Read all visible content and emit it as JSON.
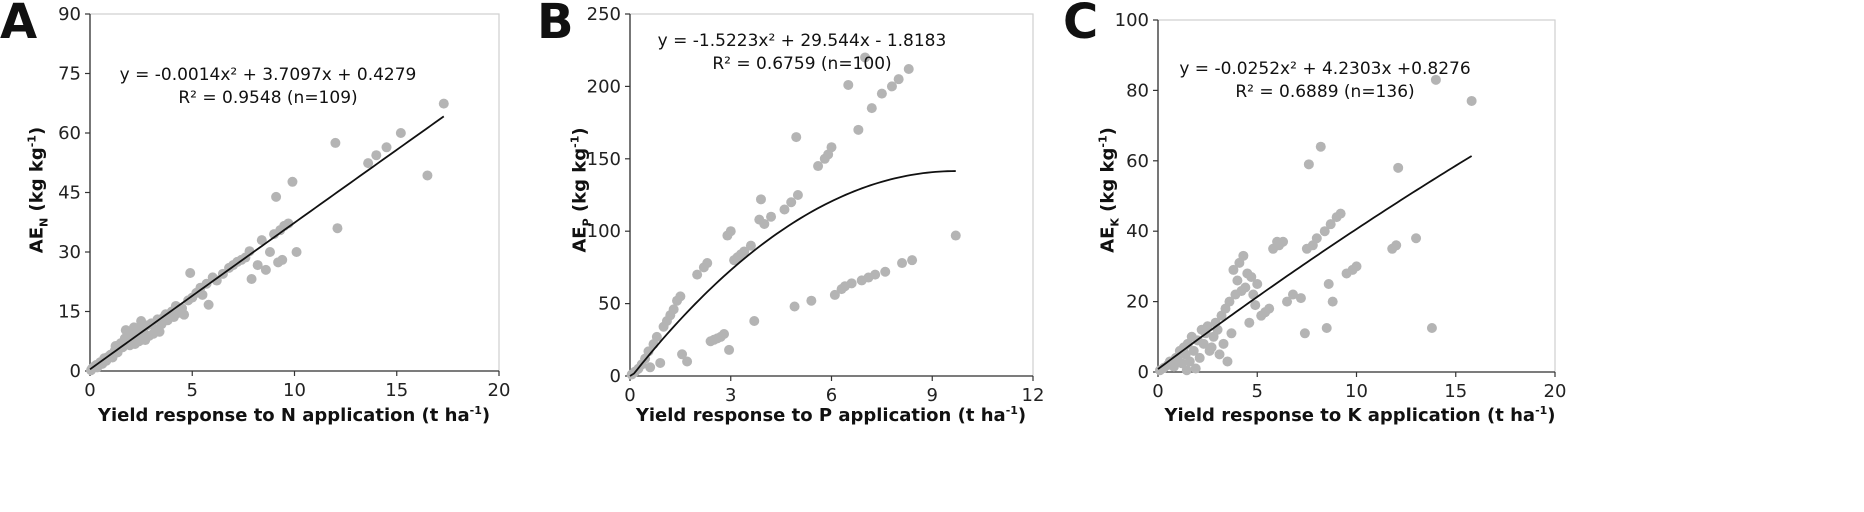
{
  "chart_data": [
    {
      "type": "scatter",
      "panel_label": "A",
      "xlabel_main": "Yield response to N application (t ha",
      "xlabel_sup": "-1",
      "xlabel_end": ")",
      "ylabel_main": "AE",
      "ylabel_sub": "N",
      "ylabel_unit": " (kg kg",
      "ylabel_sup": "-1",
      "ylabel_end": ")",
      "equation": "y = -0.0014x² + 3.7097x + 0.4279",
      "r2": "R² = 0.9548 (n=109)",
      "xlim": [
        0,
        20
      ],
      "ylim": [
        0,
        90
      ],
      "xticks": [
        0,
        5,
        10,
        15,
        20
      ],
      "yticks": [
        0,
        15,
        30,
        45,
        60,
        75,
        90
      ],
      "grid": false,
      "fit": {
        "a": -0.0014,
        "b": 3.7097,
        "c": 0.4279,
        "x_range": [
          0,
          17.3
        ]
      },
      "points": [
        [
          0.05,
          0.2
        ],
        [
          0.1,
          0.6
        ],
        [
          0.2,
          1.1
        ],
        [
          0.3,
          1.5
        ],
        [
          0.35,
          0.9
        ],
        [
          0.5,
          2.2
        ],
        [
          0.6,
          1.8
        ],
        [
          0.7,
          3.2
        ],
        [
          0.8,
          2.6
        ],
        [
          0.9,
          3.6
        ],
        [
          1.0,
          4.1
        ],
        [
          1.1,
          3.4
        ],
        [
          1.2,
          5.0
        ],
        [
          1.25,
          6.3
        ],
        [
          1.35,
          4.7
        ],
        [
          1.4,
          5.8
        ],
        [
          1.5,
          7.0
        ],
        [
          1.6,
          6.0
        ],
        [
          1.7,
          8.2
        ],
        [
          1.75,
          10.3
        ],
        [
          1.8,
          7.1
        ],
        [
          1.9,
          9.3
        ],
        [
          1.95,
          6.5
        ],
        [
          2.0,
          10.0
        ],
        [
          2.05,
          7.8
        ],
        [
          2.1,
          8.9
        ],
        [
          2.15,
          11.0
        ],
        [
          2.2,
          6.8
        ],
        [
          2.3,
          9.6
        ],
        [
          2.35,
          10.8
        ],
        [
          2.4,
          7.5
        ],
        [
          2.5,
          12.6
        ],
        [
          2.55,
          8.4
        ],
        [
          2.6,
          10.2
        ],
        [
          2.7,
          7.8
        ],
        [
          2.8,
          11.5
        ],
        [
          2.9,
          8.9
        ],
        [
          3.0,
          12.0
        ],
        [
          3.1,
          9.4
        ],
        [
          3.2,
          10.5
        ],
        [
          3.3,
          13.0
        ],
        [
          3.4,
          9.9
        ],
        [
          3.5,
          11.8
        ],
        [
          3.6,
          13.5
        ],
        [
          3.7,
          14.3
        ],
        [
          3.8,
          12.8
        ],
        [
          4.0,
          15.0
        ],
        [
          4.1,
          13.6
        ],
        [
          4.2,
          16.4
        ],
        [
          4.3,
          14.6
        ],
        [
          4.5,
          15.8
        ],
        [
          4.6,
          14.2
        ],
        [
          4.8,
          17.8
        ],
        [
          4.9,
          24.7
        ],
        [
          5.0,
          18.5
        ],
        [
          5.2,
          19.7
        ],
        [
          5.4,
          21.0
        ],
        [
          5.5,
          19.2
        ],
        [
          5.7,
          22.0
        ],
        [
          5.8,
          16.7
        ],
        [
          6.0,
          23.6
        ],
        [
          6.2,
          22.8
        ],
        [
          6.5,
          24.5
        ],
        [
          6.8,
          26.0
        ],
        [
          7.0,
          26.7
        ],
        [
          7.2,
          27.5
        ],
        [
          7.4,
          28.0
        ],
        [
          7.6,
          28.6
        ],
        [
          7.8,
          30.2
        ],
        [
          7.9,
          23.2
        ],
        [
          8.2,
          26.7
        ],
        [
          8.4,
          33.0
        ],
        [
          8.6,
          25.5
        ],
        [
          8.8,
          30.0
        ],
        [
          9.0,
          34.5
        ],
        [
          9.1,
          43.9
        ],
        [
          9.2,
          27.4
        ],
        [
          9.3,
          35.5
        ],
        [
          9.4,
          28.0
        ],
        [
          9.5,
          36.6
        ],
        [
          9.7,
          37.2
        ],
        [
          9.9,
          47.7
        ],
        [
          10.1,
          30.0
        ],
        [
          12.0,
          57.5
        ],
        [
          12.1,
          36.0
        ],
        [
          13.6,
          52.4
        ],
        [
          14.0,
          54.4
        ],
        [
          14.5,
          56.4
        ],
        [
          15.2,
          60.0
        ],
        [
          16.5,
          49.3
        ],
        [
          17.3,
          67.4
        ]
      ]
    },
    {
      "type": "scatter",
      "panel_label": "B",
      "xlabel_main": "Yield response to P application (t ha",
      "xlabel_sup": "-1",
      "xlabel_end": ")",
      "ylabel_main": "AE",
      "ylabel_sub": "P",
      "ylabel_unit": " (kg kg",
      "ylabel_sup": "-1",
      "ylabel_end": ")",
      "equation": "y = -1.5223x² + 29.544x - 1.8183",
      "r2": "R² = 0.6759 (n=100)",
      "xlim": [
        0,
        12
      ],
      "ylim": [
        0,
        250
      ],
      "xticks": [
        0,
        3,
        6,
        9,
        12
      ],
      "yticks": [
        0,
        50,
        100,
        150,
        200,
        250
      ],
      "grid": false,
      "fit": {
        "a": -1.5223,
        "b": 29.544,
        "c": -1.8183,
        "x_range": [
          0,
          9.7
        ]
      },
      "points": [
        [
          0.05,
          1
        ],
        [
          0.15,
          3
        ],
        [
          0.25,
          5
        ],
        [
          0.35,
          8
        ],
        [
          0.45,
          12
        ],
        [
          0.55,
          17
        ],
        [
          0.6,
          6
        ],
        [
          0.7,
          22
        ],
        [
          0.8,
          27
        ],
        [
          0.9,
          9
        ],
        [
          1.0,
          34
        ],
        [
          1.1,
          38
        ],
        [
          1.2,
          42
        ],
        [
          1.3,
          46
        ],
        [
          1.4,
          52
        ],
        [
          1.5,
          55
        ],
        [
          1.55,
          15
        ],
        [
          1.7,
          10
        ],
        [
          2.0,
          70
        ],
        [
          2.2,
          75
        ],
        [
          2.3,
          78
        ],
        [
          2.4,
          24
        ],
        [
          2.5,
          25
        ],
        [
          2.6,
          26
        ],
        [
          2.7,
          27
        ],
        [
          2.8,
          29
        ],
        [
          2.9,
          97
        ],
        [
          2.95,
          18
        ],
        [
          3.0,
          100
        ],
        [
          3.1,
          80
        ],
        [
          3.2,
          82
        ],
        [
          3.3,
          84
        ],
        [
          3.4,
          86
        ],
        [
          3.6,
          90
        ],
        [
          3.7,
          38
        ],
        [
          3.85,
          108
        ],
        [
          3.9,
          122
        ],
        [
          4.0,
          105
        ],
        [
          4.2,
          110
        ],
        [
          4.6,
          115
        ],
        [
          4.8,
          120
        ],
        [
          4.9,
          48
        ],
        [
          4.95,
          165
        ],
        [
          5.0,
          125
        ],
        [
          5.4,
          52
        ],
        [
          5.6,
          145
        ],
        [
          5.8,
          150
        ],
        [
          5.9,
          153
        ],
        [
          6.0,
          158
        ],
        [
          6.1,
          56
        ],
        [
          6.3,
          60
        ],
        [
          6.4,
          62
        ],
        [
          6.5,
          201
        ],
        [
          6.6,
          64
        ],
        [
          6.8,
          170
        ],
        [
          6.9,
          66
        ],
        [
          7.0,
          220
        ],
        [
          7.1,
          68
        ],
        [
          7.2,
          185
        ],
        [
          7.3,
          70
        ],
        [
          7.5,
          195
        ],
        [
          7.6,
          72
        ],
        [
          7.8,
          200
        ],
        [
          8.0,
          205
        ],
        [
          8.1,
          78
        ],
        [
          8.3,
          212
        ],
        [
          8.4,
          80
        ],
        [
          9.7,
          97
        ]
      ]
    },
    {
      "type": "scatter",
      "panel_label": "C",
      "xlabel_main": "Yield response to K application (t ha",
      "xlabel_sup": "-1",
      "xlabel_end": ")",
      "ylabel_main": "AE",
      "ylabel_sub": "K",
      "ylabel_unit": " (kg kg",
      "ylabel_sup": "-1",
      "ylabel_end": ")",
      "equation": "y = -0.0252x² + 4.2303x +0.8276",
      "r2": "R² = 0.6889 (n=136)",
      "xlim": [
        0,
        20
      ],
      "ylim": [
        0,
        100
      ],
      "xticks": [
        0,
        5,
        10,
        15,
        20
      ],
      "yticks": [
        0,
        20,
        40,
        60,
        80,
        100
      ],
      "grid": false,
      "fit": {
        "a": -0.0252,
        "b": 4.2303,
        "c": 0.8276,
        "x_range": [
          0,
          15.8
        ]
      },
      "points": [
        [
          0.1,
          0.5
        ],
        [
          0.3,
          1.2
        ],
        [
          0.5,
          2
        ],
        [
          0.6,
          3
        ],
        [
          0.8,
          1.5
        ],
        [
          0.9,
          4
        ],
        [
          1.0,
          3.5
        ],
        [
          1.1,
          6
        ],
        [
          1.2,
          2.5
        ],
        [
          1.3,
          7
        ],
        [
          1.4,
          5
        ],
        [
          1.45,
          0.5
        ],
        [
          1.5,
          8
        ],
        [
          1.6,
          3
        ],
        [
          1.7,
          10
        ],
        [
          1.8,
          6
        ],
        [
          1.9,
          1
        ],
        [
          2.0,
          9
        ],
        [
          2.1,
          4
        ],
        [
          2.2,
          12
        ],
        [
          2.3,
          8
        ],
        [
          2.4,
          11
        ],
        [
          2.5,
          13
        ],
        [
          2.6,
          6
        ],
        [
          2.7,
          7
        ],
        [
          2.8,
          10
        ],
        [
          2.9,
          14
        ],
        [
          3.0,
          12
        ],
        [
          3.1,
          5
        ],
        [
          3.2,
          16
        ],
        [
          3.3,
          8
        ],
        [
          3.4,
          18
        ],
        [
          3.5,
          3
        ],
        [
          3.6,
          20
        ],
        [
          3.7,
          11
        ],
        [
          3.8,
          29
        ],
        [
          3.9,
          22
        ],
        [
          4.0,
          26
        ],
        [
          4.1,
          31
        ],
        [
          4.2,
          23
        ],
        [
          4.3,
          33
        ],
        [
          4.4,
          24
        ],
        [
          4.5,
          28
        ],
        [
          4.6,
          14
        ],
        [
          4.7,
          27
        ],
        [
          4.8,
          22
        ],
        [
          4.9,
          19
        ],
        [
          5.0,
          25
        ],
        [
          5.2,
          16
        ],
        [
          5.4,
          17
        ],
        [
          5.6,
          18
        ],
        [
          5.8,
          35
        ],
        [
          6.0,
          37
        ],
        [
          6.1,
          36
        ],
        [
          6.3,
          37
        ],
        [
          6.5,
          20
        ],
        [
          6.8,
          22
        ],
        [
          7.2,
          21
        ],
        [
          7.4,
          11
        ],
        [
          7.5,
          35
        ],
        [
          7.6,
          59
        ],
        [
          7.8,
          36
        ],
        [
          8.0,
          38
        ],
        [
          8.2,
          64
        ],
        [
          8.4,
          40
        ],
        [
          8.5,
          12.5
        ],
        [
          8.6,
          25
        ],
        [
          8.7,
          42
        ],
        [
          8.8,
          20
        ],
        [
          9.0,
          44
        ],
        [
          9.2,
          45
        ],
        [
          9.5,
          28
        ],
        [
          9.8,
          29
        ],
        [
          10.0,
          30
        ],
        [
          11.8,
          35
        ],
        [
          12.0,
          36
        ],
        [
          12.1,
          58
        ],
        [
          13.0,
          38
        ],
        [
          13.8,
          12.5
        ],
        [
          14.0,
          83
        ],
        [
          15.8,
          77
        ]
      ]
    }
  ]
}
